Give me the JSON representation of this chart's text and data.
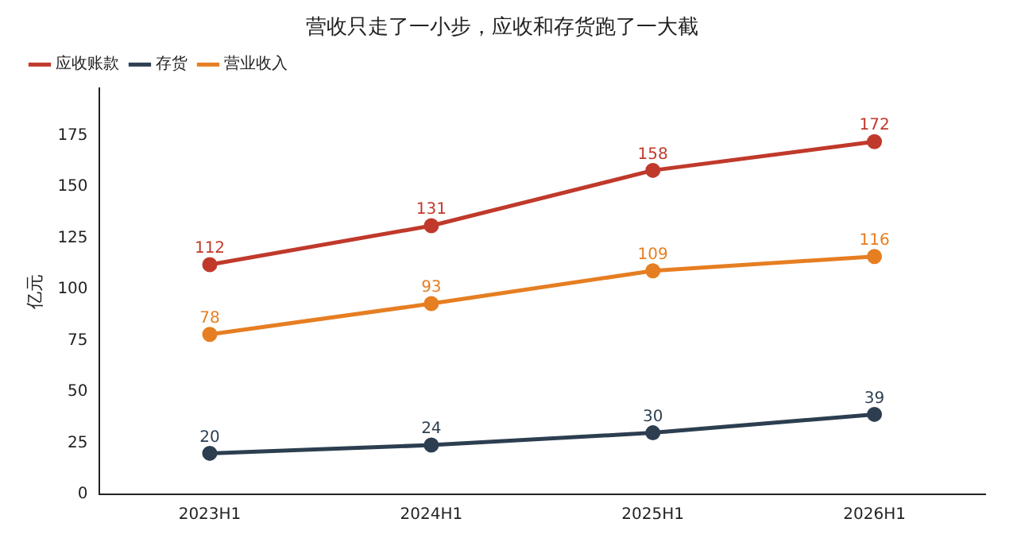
{
  "chart_data": {
    "type": "line",
    "title": "营收只走了一小步，应收和存货跑了一大截",
    "ylabel": "亿元",
    "categories": [
      "2023H1",
      "2024H1",
      "2025H1",
      "2026H1"
    ],
    "series": [
      {
        "name": "应收账款",
        "color": "#c0392b",
        "values": [
          112,
          131,
          158,
          172
        ]
      },
      {
        "name": "存货",
        "color": "#2c3e50",
        "values": [
          20,
          24,
          30,
          39
        ]
      },
      {
        "name": "营业收入",
        "color": "#e67e22",
        "values": [
          78,
          93,
          109,
          116
        ]
      }
    ],
    "ylim": [
      0,
      198
    ],
    "yticks": [
      0,
      25,
      50,
      75,
      100,
      125,
      150,
      175
    ],
    "grid": false,
    "legend": "top left",
    "marker": "circle",
    "line_style": "solid",
    "data_labels": true
  }
}
